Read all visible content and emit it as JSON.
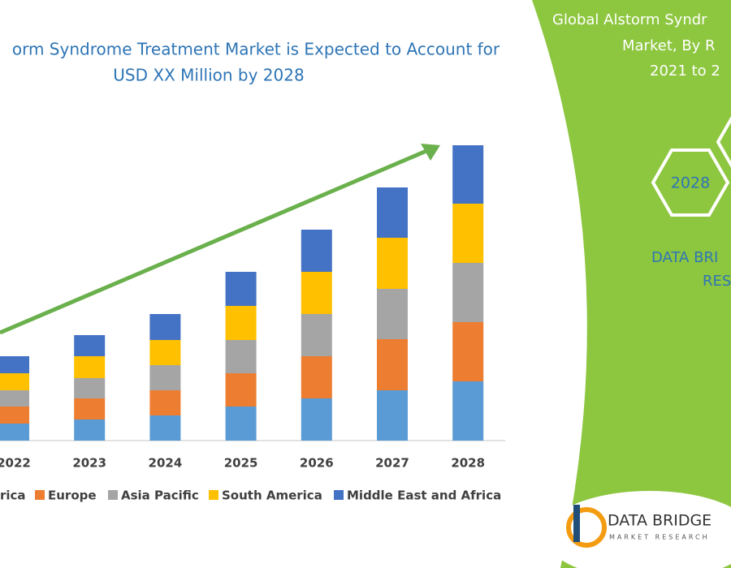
{
  "chart_data": {
    "type": "stacked-bar",
    "title_lines": [
      "orm Syndrome Treatment Market is Expected to Account for",
      "USD XX Million by 2028"
    ],
    "categories": [
      "2022",
      "2023",
      "2024",
      "2025",
      "2026",
      "2027",
      "2028"
    ],
    "series": [
      {
        "name": "rica",
        "color": "#5b9bd5",
        "values": [
          21,
          26,
          31,
          42,
          52,
          62,
          73
        ]
      },
      {
        "name": "Europe",
        "color": "#ed7d31",
        "values": [
          21,
          26,
          31,
          41,
          52,
          63,
          73
        ]
      },
      {
        "name": "Asia Pacific",
        "color": "#a5a5a5",
        "values": [
          20,
          25,
          31,
          41,
          52,
          62,
          73
        ]
      },
      {
        "name": "South America",
        "color": "#ffc000",
        "values": [
          21,
          27,
          31,
          42,
          52,
          63,
          73
        ]
      },
      {
        "name": "Middle East and Africa",
        "color": "#4472c4",
        "values": [
          21,
          26,
          32,
          42,
          52,
          62,
          72
        ]
      }
    ]
  },
  "panel": {
    "heading_lines": [
      "Global Alstorm Syndr",
      "Market, By R",
      "2021 to 2"
    ],
    "hexagon_label": "2028",
    "brand_lines": [
      "DATA BRI",
      "RES"
    ],
    "logo": {
      "name": "DATA BRIDGE",
      "tagline": "MARKET RESEARCH"
    }
  }
}
